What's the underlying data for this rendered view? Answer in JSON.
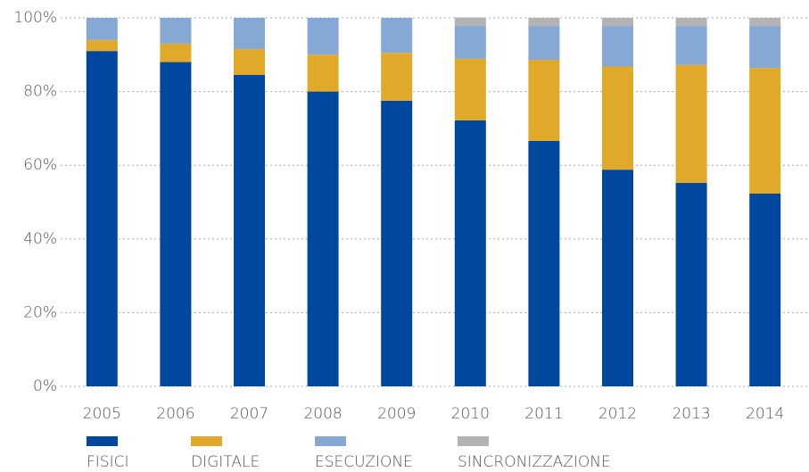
{
  "chart_data": {
    "type": "stacked_bar",
    "categories": [
      "2005",
      "2006",
      "2007",
      "2008",
      "2009",
      "2010",
      "2011",
      "2012",
      "2013",
      "2014"
    ],
    "series": [
      {
        "name": "FISICI",
        "color": "#0047a0",
        "values": [
          91,
          88,
          84.5,
          80,
          77.5,
          72.2,
          66.6,
          58.8,
          55.2,
          52.3
        ]
      },
      {
        "name": "DIGITALE",
        "color": "#e0a92a",
        "values": [
          3,
          5,
          7,
          10,
          13,
          16.7,
          22,
          28,
          32,
          34.1
        ]
      },
      {
        "name": "ESECUZIONE",
        "color": "#86a8d4",
        "values": [
          6,
          7,
          8.5,
          10,
          9.5,
          9,
          9.2,
          11,
          10.6,
          11.4
        ]
      },
      {
        "name": "SINCRONIZZAZIONE",
        "color": "#b3b3b3",
        "values": [
          0,
          0,
          0,
          0,
          0,
          2.2,
          2.2,
          2.2,
          2.2,
          2.2
        ]
      }
    ],
    "ylim": [
      0,
      100
    ],
    "yticks": [
      {
        "value": 0,
        "label": "0%"
      },
      {
        "value": 20,
        "label": "20%"
      },
      {
        "value": 40,
        "label": "40%"
      },
      {
        "value": 60,
        "label": "60%"
      },
      {
        "value": 80,
        "label": "80%"
      },
      {
        "value": 100,
        "label": "100%"
      }
    ],
    "grid": true
  }
}
